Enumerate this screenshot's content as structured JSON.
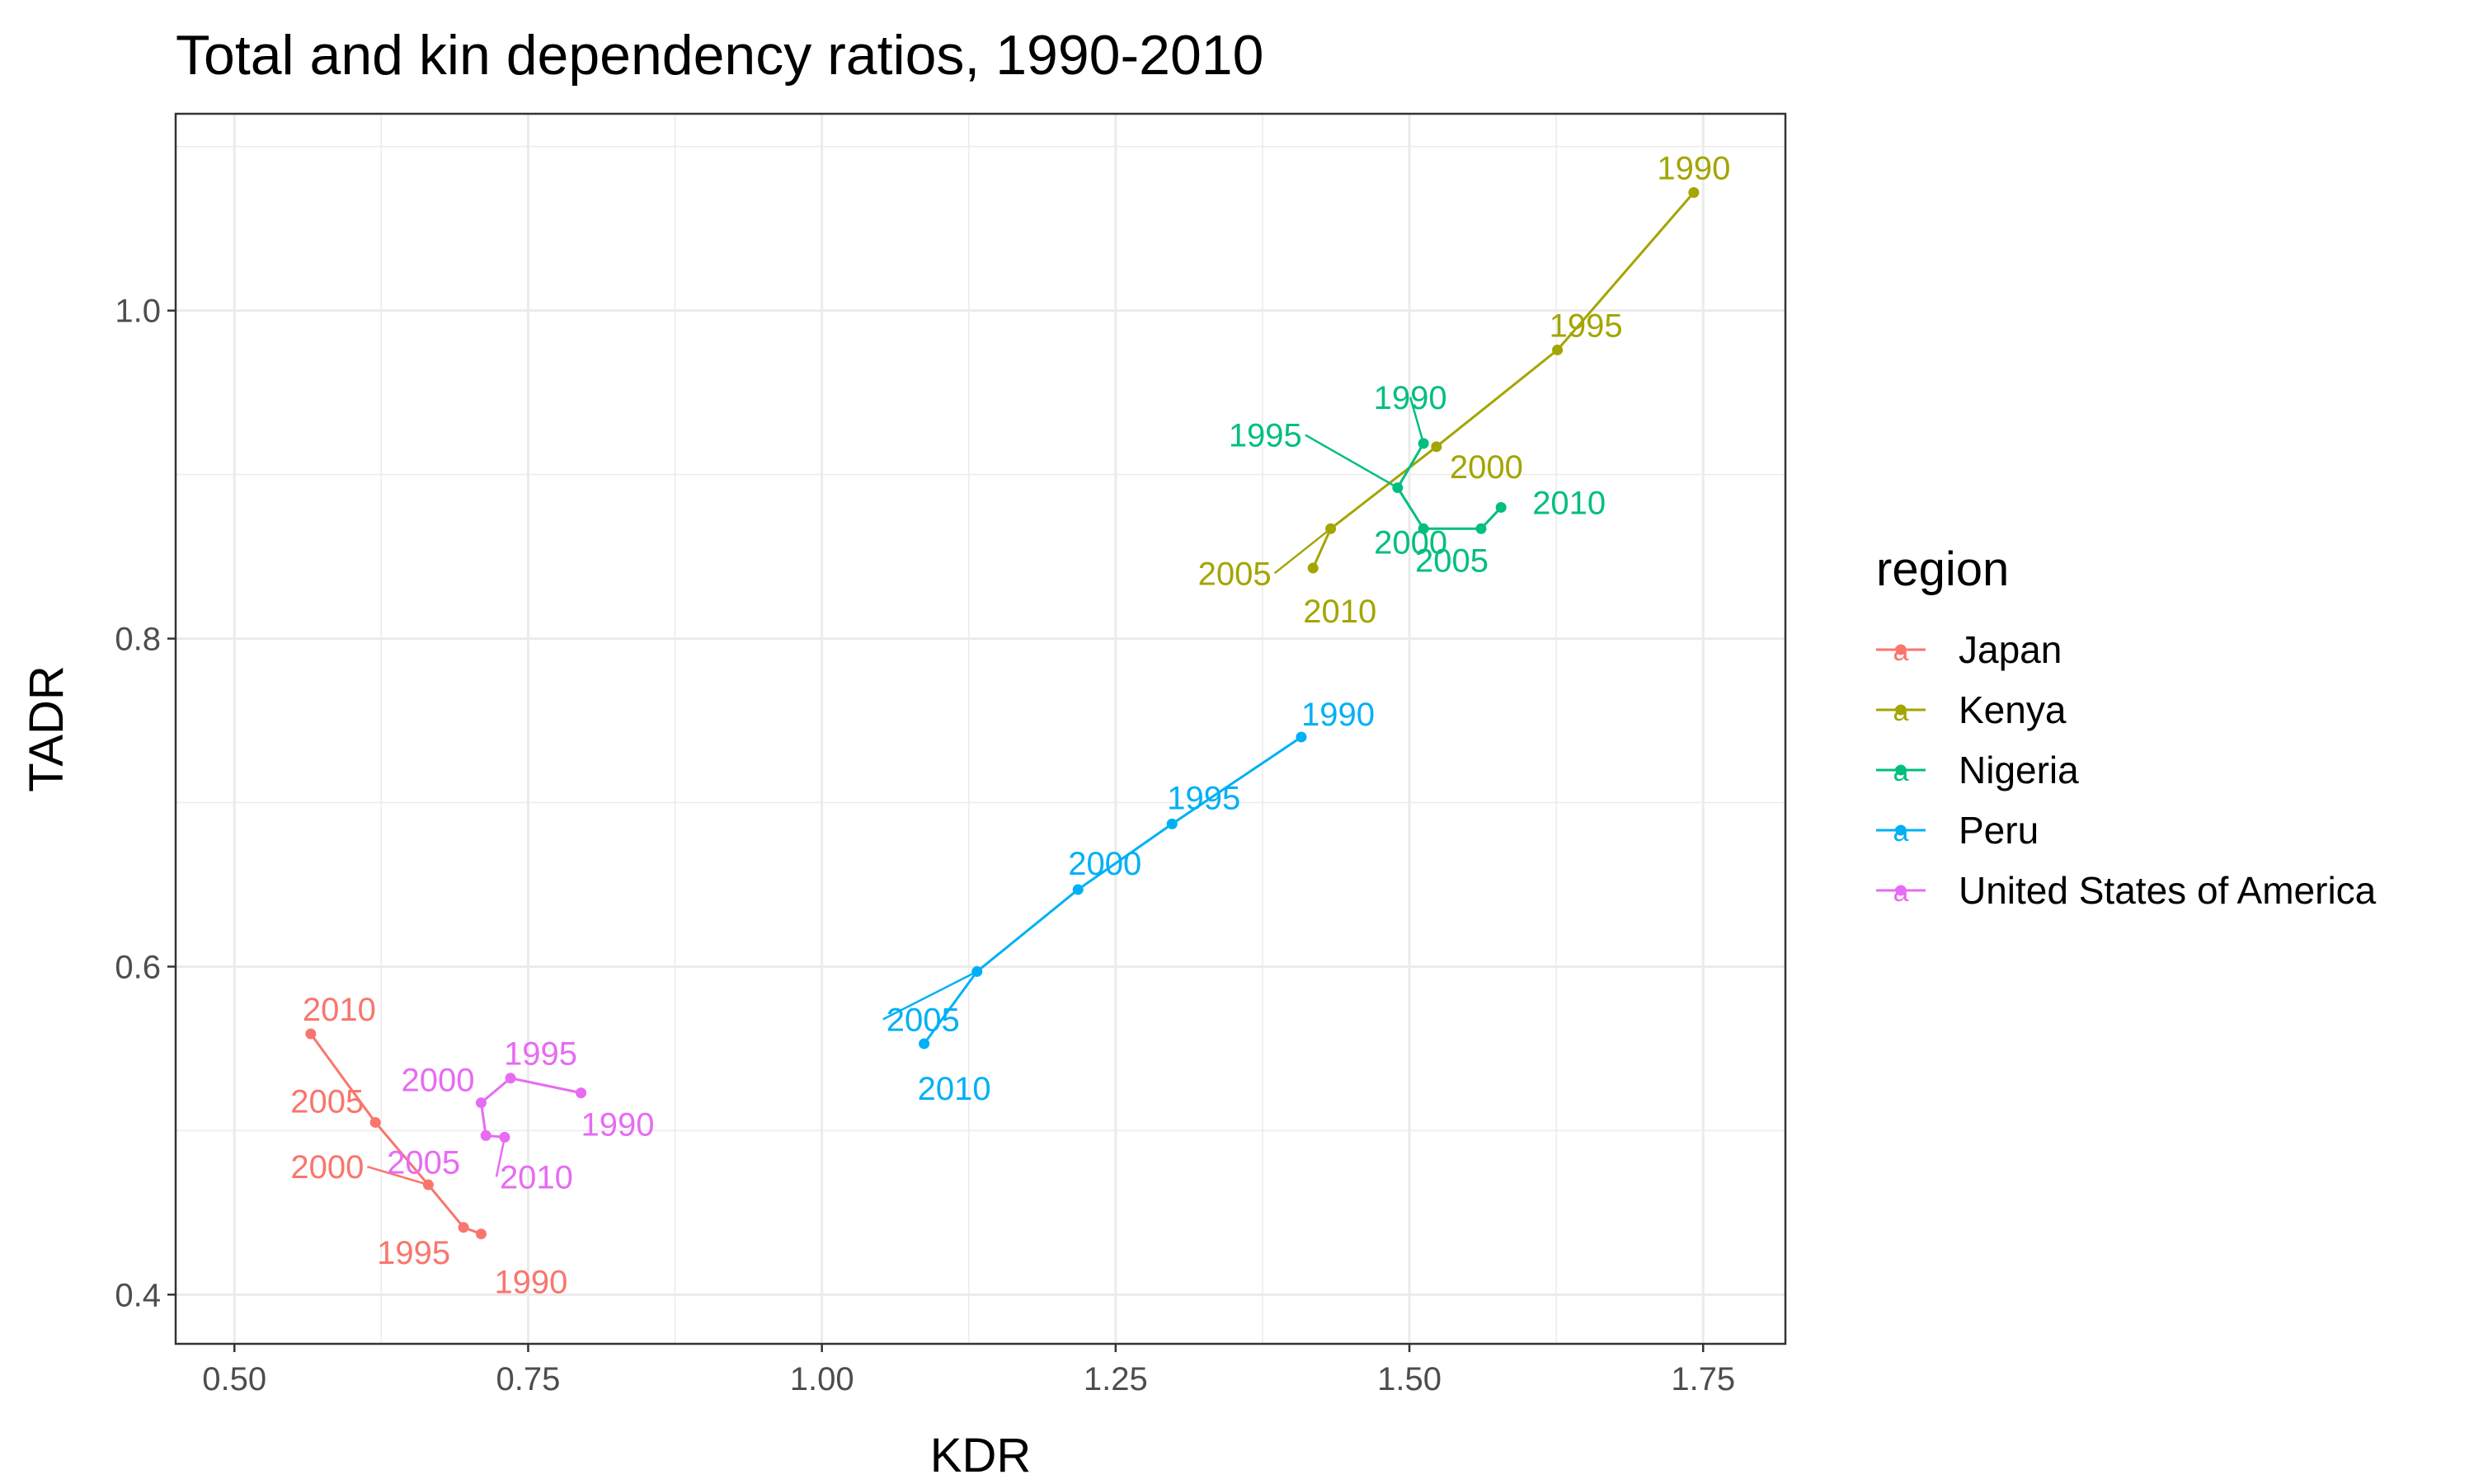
{
  "chart_data": {
    "type": "line",
    "title": "Total and kin dependency ratios, 1990-2010",
    "xlabel": "KDR",
    "ylabel": "TADR",
    "xlim": [
      0.45,
      1.82
    ],
    "ylim": [
      0.37,
      1.12
    ],
    "x_ticks": [
      0.5,
      0.75,
      1.0,
      1.25,
      1.5,
      1.75
    ],
    "x_tick_labels": [
      "0.50",
      "0.75",
      "1.00",
      "1.25",
      "1.50",
      "1.75"
    ],
    "y_ticks": [
      0.4,
      0.6,
      0.8,
      1.0
    ],
    "y_tick_labels": [
      "0.4",
      "0.6",
      "0.8",
      "1.0"
    ],
    "grid": true,
    "legend": {
      "title": "region",
      "position": "right",
      "glyph": "a"
    },
    "series": [
      {
        "name": "Japan",
        "color": "#F8766D",
        "points": [
          {
            "label": "1990",
            "x": 0.71,
            "y": 0.437
          },
          {
            "label": "1995",
            "x": 0.695,
            "y": 0.441
          },
          {
            "label": "2000",
            "x": 0.665,
            "y": 0.467
          },
          {
            "label": "2005",
            "x": 0.62,
            "y": 0.505
          },
          {
            "label": "2010",
            "x": 0.565,
            "y": 0.559
          }
        ]
      },
      {
        "name": "Kenya",
        "color": "#A3A500",
        "points": [
          {
            "label": "1990",
            "x": 1.742,
            "y": 1.072
          },
          {
            "label": "1995",
            "x": 1.626,
            "y": 0.976
          },
          {
            "label": "2000",
            "x": 1.523,
            "y": 0.917
          },
          {
            "label": "2005",
            "x": 1.433,
            "y": 0.867
          },
          {
            "label": "2010",
            "x": 1.418,
            "y": 0.843
          }
        ]
      },
      {
        "name": "Nigeria",
        "color": "#00BF7D",
        "points": [
          {
            "label": "1990",
            "x": 1.512,
            "y": 0.919
          },
          {
            "label": "1995",
            "x": 1.49,
            "y": 0.892
          },
          {
            "label": "2000",
            "x": 1.512,
            "y": 0.867
          },
          {
            "label": "2005",
            "x": 1.561,
            "y": 0.867
          },
          {
            "label": "2010",
            "x": 1.578,
            "y": 0.88
          }
        ]
      },
      {
        "name": "Peru",
        "color": "#00B0F6",
        "points": [
          {
            "label": "1990",
            "x": 1.408,
            "y": 0.74
          },
          {
            "label": "1995",
            "x": 1.298,
            "y": 0.687
          },
          {
            "label": "2000",
            "x": 1.218,
            "y": 0.647
          },
          {
            "label": "2005",
            "x": 1.132,
            "y": 0.597
          },
          {
            "label": "2010",
            "x": 1.087,
            "y": 0.553
          }
        ]
      },
      {
        "name": "United States of America",
        "color": "#E76BF3",
        "points": [
          {
            "label": "1990",
            "x": 0.795,
            "y": 0.523
          },
          {
            "label": "1995",
            "x": 0.735,
            "y": 0.532
          },
          {
            "label": "2000",
            "x": 0.71,
            "y": 0.517
          },
          {
            "label": "2005",
            "x": 0.714,
            "y": 0.497
          },
          {
            "label": "2010",
            "x": 0.73,
            "y": 0.496
          }
        ]
      }
    ]
  }
}
